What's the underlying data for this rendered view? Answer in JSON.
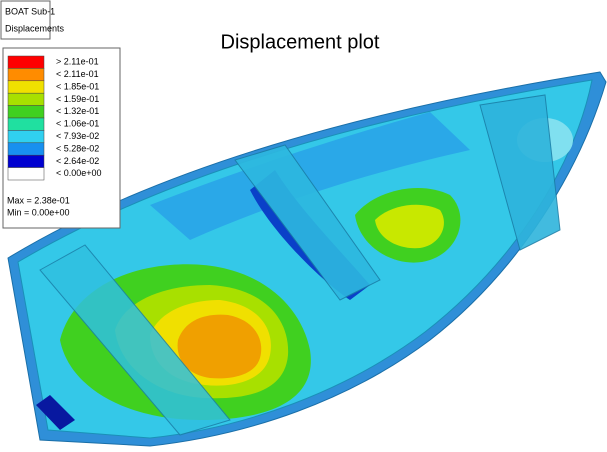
{
  "header": {
    "model": "BOAT Sub-1",
    "result": "Displacements"
  },
  "title": "Displacement plot",
  "legend": {
    "items": [
      {
        "label": "> 2.11e-01",
        "color": "#ff0000"
      },
      {
        "label": "< 2.11e-01",
        "color": "#ff8c00"
      },
      {
        "label": "< 1.85e-01",
        "color": "#f0e000"
      },
      {
        "label": "< 1.59e-01",
        "color": "#a8e000"
      },
      {
        "label": "< 1.32e-01",
        "color": "#40d020"
      },
      {
        "label": "< 1.06e-01",
        "color": "#20e0a0"
      },
      {
        "label": "< 7.93e-02",
        "color": "#30d0f0"
      },
      {
        "label": "< 5.28e-02",
        "color": "#1890f0"
      },
      {
        "label": "< 2.64e-02",
        "color": "#0000d0"
      },
      {
        "label": "< 0.00e+00",
        "color": "#ffffff"
      }
    ],
    "max": "Max = 2.38e-01",
    "min": "Min = 0.00e+00"
  }
}
